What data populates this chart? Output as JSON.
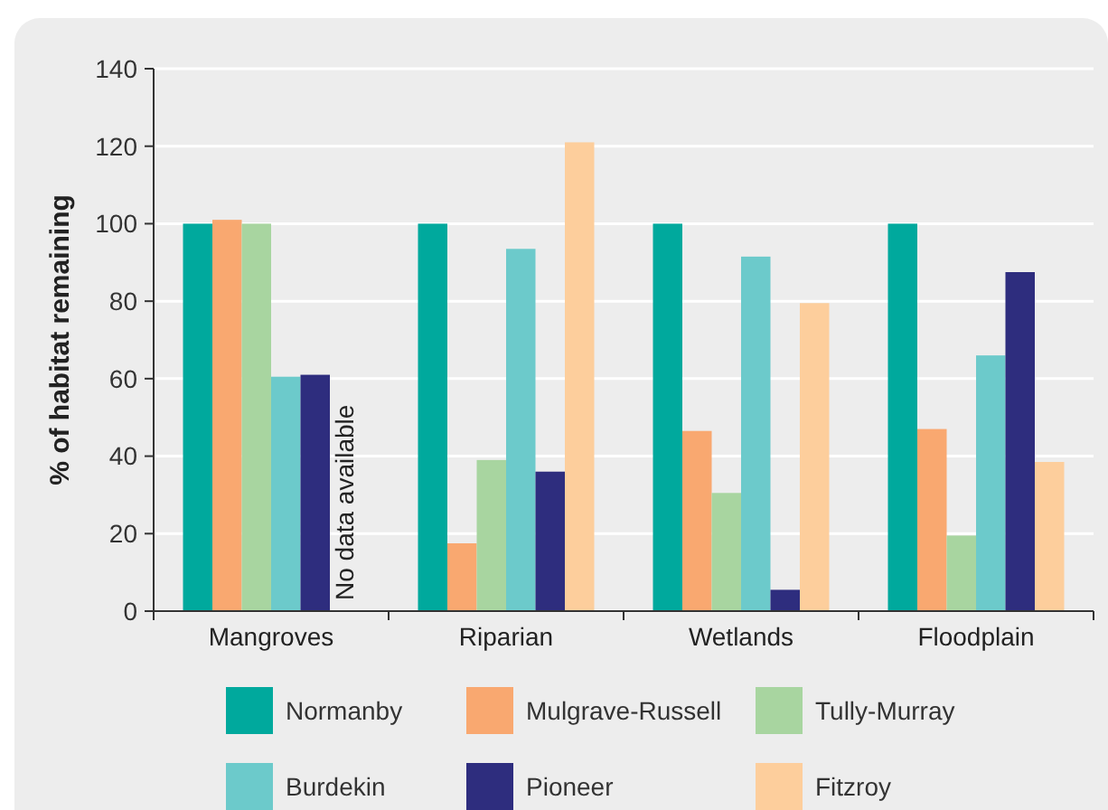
{
  "chart_data": {
    "type": "bar",
    "ylabel": "% of habitat remaining",
    "categories": [
      "Mangroves",
      "Riparian",
      "Wetlands",
      "Floodplain"
    ],
    "series": [
      {
        "name": "Normanby",
        "color": "#00a99d",
        "values": [
          100,
          100,
          100,
          100
        ]
      },
      {
        "name": "Mulgrave-Russell",
        "color": "#f9a870",
        "values": [
          101,
          17.5,
          46.5,
          47
        ]
      },
      {
        "name": "Tully-Murray",
        "color": "#a8d5a0",
        "values": [
          100,
          39,
          30.5,
          19.5
        ]
      },
      {
        "name": "Burdekin",
        "color": "#6ccacb",
        "values": [
          60.5,
          93.5,
          91.5,
          66
        ]
      },
      {
        "name": "Pioneer",
        "color": "#2e2d7e",
        "values": [
          61,
          36,
          5.5,
          87.5
        ]
      },
      {
        "name": "Fitzroy",
        "color": "#fdce9c",
        "values": [
          null,
          121,
          79.5,
          38.5
        ]
      }
    ],
    "ylim": [
      0,
      140
    ],
    "yticks": [
      0,
      20,
      40,
      60,
      80,
      100,
      120,
      140
    ],
    "grid": "y",
    "legend": "bottom",
    "annotations": [
      {
        "text": "No data available",
        "x": "Mangroves"
      }
    ]
  }
}
